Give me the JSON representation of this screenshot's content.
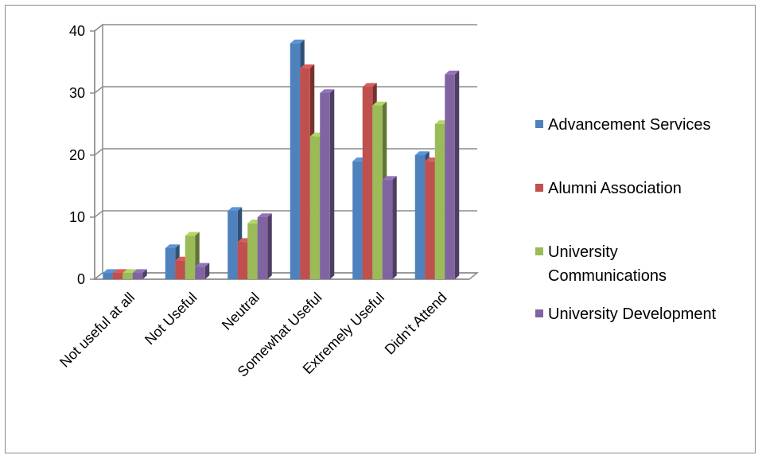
{
  "chart_data": {
    "type": "bar",
    "style": "3d-clustered-column",
    "categories": [
      "Not useful at all",
      "Not Useful",
      "Neutral",
      "Somewhat Useful",
      "Extremely Useful",
      "Didn't Attend"
    ],
    "series": [
      {
        "name": "Advancement Services",
        "color": "#4F81BD",
        "values": [
          1,
          5,
          11,
          38,
          19,
          20
        ]
      },
      {
        "name": "Alumni Association",
        "color": "#C0504D",
        "values": [
          1,
          3,
          6,
          34,
          31,
          19
        ]
      },
      {
        "name": "University Communications",
        "legend_lines": [
          "University",
          "Communications"
        ],
        "color": "#9BBB59",
        "values": [
          1,
          7,
          9,
          23,
          28,
          25
        ]
      },
      {
        "name": "University Development",
        "color": "#8064A2",
        "values": [
          1,
          2,
          10,
          30,
          16,
          33
        ]
      }
    ],
    "ylim": [
      0,
      40
    ],
    "yticks": [
      0,
      10,
      20,
      30,
      40
    ],
    "grid": true,
    "legend": "right",
    "title": "",
    "xlabel": "",
    "ylabel": ""
  }
}
